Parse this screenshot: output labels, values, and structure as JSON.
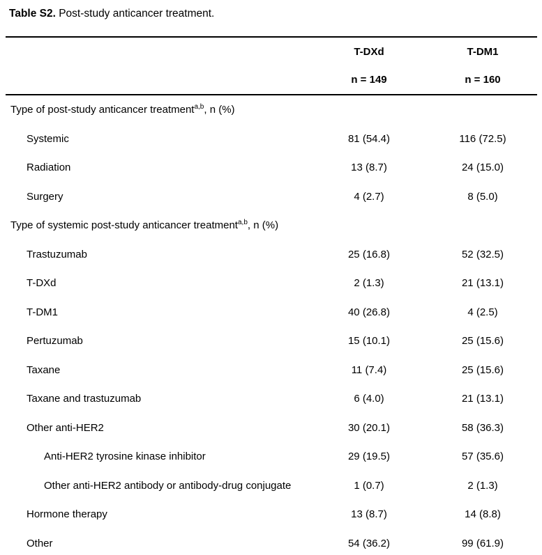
{
  "title": {
    "bold": "Table S2.",
    "rest": " Post-study anticancer treatment."
  },
  "table": {
    "columns": [
      {
        "name": "T-DXd",
        "n": "n = 149"
      },
      {
        "name": "T-DM1",
        "n": "n = 160"
      }
    ],
    "rows": [
      {
        "label": "Type of post-study anticancer treatment",
        "sup": "a,b",
        "suffix": ", n (%)",
        "tdxd": "",
        "tdm1": ""
      },
      {
        "label": "Systemic",
        "tdxd": "81 (54.4)",
        "tdm1": "116 (72.5)"
      },
      {
        "label": "Radiation",
        "tdxd": "13 (8.7)",
        "tdm1": "24 (15.0)"
      },
      {
        "label": "Surgery",
        "tdxd": "4 (2.7)",
        "tdm1": "8 (5.0)"
      },
      {
        "label": "Type of systemic post-study anticancer treatment",
        "sup": "a,b",
        "suffix": ", n (%)",
        "tdxd": "",
        "tdm1": ""
      },
      {
        "label": "Trastuzumab",
        "tdxd": "25 (16.8)",
        "tdm1": "52 (32.5)"
      },
      {
        "label": "T-DXd",
        "tdxd": "2 (1.3)",
        "tdm1": "21 (13.1)"
      },
      {
        "label": "T-DM1",
        "tdxd": "40 (26.8)",
        "tdm1": "4 (2.5)"
      },
      {
        "label": "Pertuzumab",
        "tdxd": "15 (10.1)",
        "tdm1": "25 (15.6)"
      },
      {
        "label": "Taxane",
        "tdxd": "11 (7.4)",
        "tdm1": "25 (15.6)"
      },
      {
        "label": "Taxane and trastuzumab",
        "tdxd": "6 (4.0)",
        "tdm1": "21 (13.1)"
      },
      {
        "label": "Other anti-HER2",
        "tdxd": "30 (20.1)",
        "tdm1": "58 (36.3)"
      },
      {
        "label": "Anti-HER2 tyrosine kinase inhibitor",
        "tdxd": "29 (19.5)",
        "tdm1": "57 (35.6)"
      },
      {
        "label": "Other anti-HER2 antibody or antibody-drug conjugate",
        "tdxd": "1 (0.7)",
        "tdm1": "2 (1.3)"
      },
      {
        "label": "Hormone therapy",
        "tdxd": "13 (8.7)",
        "tdm1": "14 (8.8)"
      },
      {
        "label": "Other",
        "tdxd": "54 (36.2)",
        "tdm1": "99 (61.9)"
      }
    ]
  }
}
